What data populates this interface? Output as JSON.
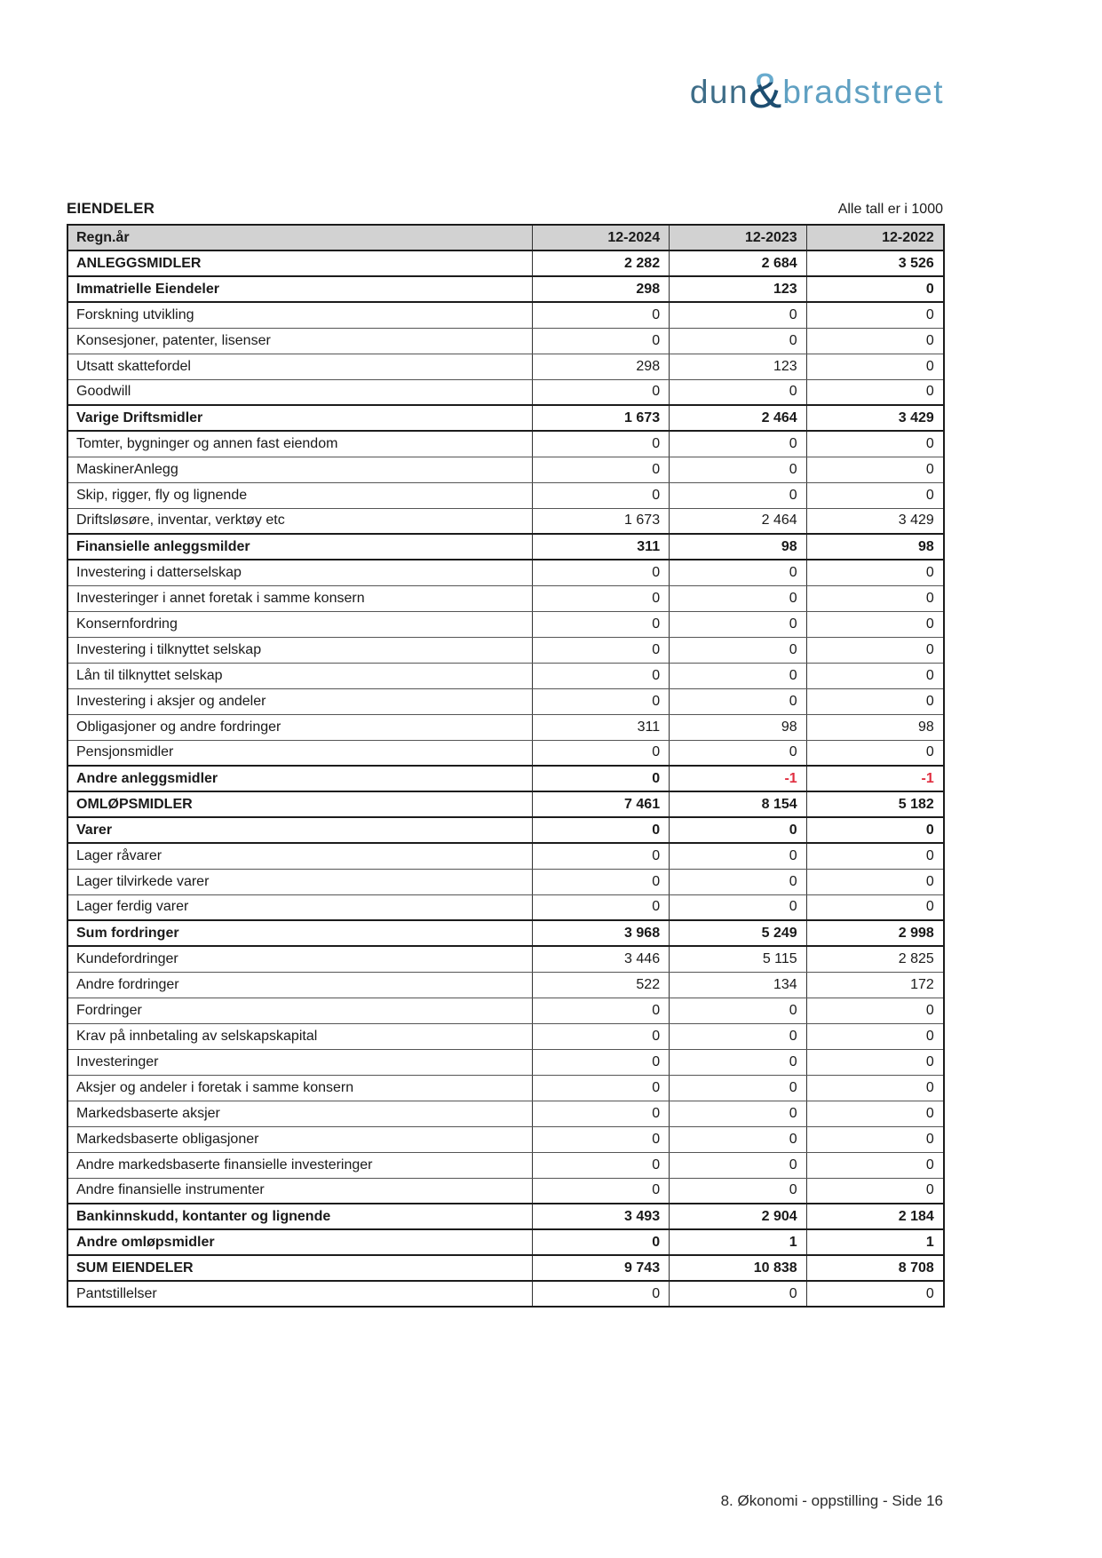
{
  "page": {
    "section_title": "EIENDELER",
    "units_note": "Alle tall er i 1000",
    "footer": "8. Økonomi - oppstilling - Side 16"
  },
  "logo": {
    "word1": "dun",
    "ampersand": "&",
    "word2": "bradstreet"
  },
  "colors": {
    "negative_value": "#e02e40",
    "header_row_bg": "#d2d2d2",
    "logo_word1": "#3e6d88",
    "logo_word2": "#5fa0c2",
    "logo_amp_dark": "#1d4d70",
    "logo_amp_light": "#68abce"
  },
  "table": {
    "header": {
      "label": "Regn.år",
      "columns": [
        "12-2024",
        "12-2023",
        "12-2022"
      ]
    },
    "rows": [
      {
        "label": "ANLEGGSMIDLER",
        "values": [
          "2 282",
          "2 684",
          "3 526"
        ],
        "bold": true
      },
      {
        "label": "Immatrielle Eiendeler",
        "values": [
          "298",
          "123",
          "0"
        ],
        "bold": true
      },
      {
        "label": "Forskning utvikling",
        "values": [
          "0",
          "0",
          "0"
        ],
        "bold": false
      },
      {
        "label": "Konsesjoner, patenter, lisenser",
        "values": [
          "0",
          "0",
          "0"
        ],
        "bold": false
      },
      {
        "label": "Utsatt skattefordel",
        "values": [
          "298",
          "123",
          "0"
        ],
        "bold": false
      },
      {
        "label": "Goodwill",
        "values": [
          "0",
          "0",
          "0"
        ],
        "bold": false
      },
      {
        "label": "Varige Driftsmidler",
        "values": [
          "1 673",
          "2 464",
          "3 429"
        ],
        "bold": true
      },
      {
        "label": "Tomter, bygninger og annen fast eiendom",
        "values": [
          "0",
          "0",
          "0"
        ],
        "bold": false
      },
      {
        "label": "MaskinerAnlegg",
        "values": [
          "0",
          "0",
          "0"
        ],
        "bold": false
      },
      {
        "label": "Skip, rigger, fly og lignende",
        "values": [
          "0",
          "0",
          "0"
        ],
        "bold": false
      },
      {
        "label": "Driftsløsøre, inventar, verktøy etc",
        "values": [
          "1 673",
          "2 464",
          "3 429"
        ],
        "bold": false
      },
      {
        "label": "Finansielle anleggsmilder",
        "values": [
          "311",
          "98",
          "98"
        ],
        "bold": true
      },
      {
        "label": "Investering i datterselskap",
        "values": [
          "0",
          "0",
          "0"
        ],
        "bold": false
      },
      {
        "label": "Investeringer i annet foretak i samme konsern",
        "values": [
          "0",
          "0",
          "0"
        ],
        "bold": false
      },
      {
        "label": "Konsernfordring",
        "values": [
          "0",
          "0",
          "0"
        ],
        "bold": false
      },
      {
        "label": "Investering i tilknyttet selskap",
        "values": [
          "0",
          "0",
          "0"
        ],
        "bold": false
      },
      {
        "label": "Lån til tilknyttet selskap",
        "values": [
          "0",
          "0",
          "0"
        ],
        "bold": false
      },
      {
        "label": "Investering i aksjer og andeler",
        "values": [
          "0",
          "0",
          "0"
        ],
        "bold": false
      },
      {
        "label": "Obligasjoner og andre fordringer",
        "values": [
          "311",
          "98",
          "98"
        ],
        "bold": false
      },
      {
        "label": "Pensjonsmidler",
        "values": [
          "0",
          "0",
          "0"
        ],
        "bold": false
      },
      {
        "label": "Andre anleggsmidler",
        "values": [
          "0",
          "-1",
          "-1"
        ],
        "bold": true
      },
      {
        "label": "OMLØPSMIDLER",
        "values": [
          "7 461",
          "8 154",
          "5 182"
        ],
        "bold": true
      },
      {
        "label": "Varer",
        "values": [
          "0",
          "0",
          "0"
        ],
        "bold": true
      },
      {
        "label": "Lager råvarer",
        "values": [
          "0",
          "0",
          "0"
        ],
        "bold": false
      },
      {
        "label": "Lager tilvirkede varer",
        "values": [
          "0",
          "0",
          "0"
        ],
        "bold": false
      },
      {
        "label": "Lager ferdig varer",
        "values": [
          "0",
          "0",
          "0"
        ],
        "bold": false
      },
      {
        "label": "Sum fordringer",
        "values": [
          "3 968",
          "5 249",
          "2 998"
        ],
        "bold": true
      },
      {
        "label": "Kundefordringer",
        "values": [
          "3 446",
          "5 115",
          "2 825"
        ],
        "bold": false
      },
      {
        "label": "Andre fordringer",
        "values": [
          "522",
          "134",
          "172"
        ],
        "bold": false
      },
      {
        "label": "Fordringer",
        "values": [
          "0",
          "0",
          "0"
        ],
        "bold": false
      },
      {
        "label": "Krav på innbetaling av selskapskapital",
        "values": [
          "0",
          "0",
          "0"
        ],
        "bold": false
      },
      {
        "label": "Investeringer",
        "values": [
          "0",
          "0",
          "0"
        ],
        "bold": false
      },
      {
        "label": "Aksjer og andeler i foretak i samme konsern",
        "values": [
          "0",
          "0",
          "0"
        ],
        "bold": false
      },
      {
        "label": "Markedsbaserte aksjer",
        "values": [
          "0",
          "0",
          "0"
        ],
        "bold": false
      },
      {
        "label": "Markedsbaserte obligasjoner",
        "values": [
          "0",
          "0",
          "0"
        ],
        "bold": false
      },
      {
        "label": "Andre markedsbaserte finansielle investeringer",
        "values": [
          "0",
          "0",
          "0"
        ],
        "bold": false
      },
      {
        "label": "Andre finansielle instrumenter",
        "values": [
          "0",
          "0",
          "0"
        ],
        "bold": false
      },
      {
        "label": "Bankinnskudd, kontanter og lignende",
        "values": [
          "3 493",
          "2 904",
          "2 184"
        ],
        "bold": true
      },
      {
        "label": "Andre omløpsmidler",
        "values": [
          "0",
          "1",
          "1"
        ],
        "bold": true
      },
      {
        "label": "SUM EIENDELER",
        "values": [
          "9 743",
          "10 838",
          "8 708"
        ],
        "bold": true
      },
      {
        "label": "Pantstillelser",
        "values": [
          "0",
          "0",
          "0"
        ],
        "bold": false
      }
    ]
  }
}
